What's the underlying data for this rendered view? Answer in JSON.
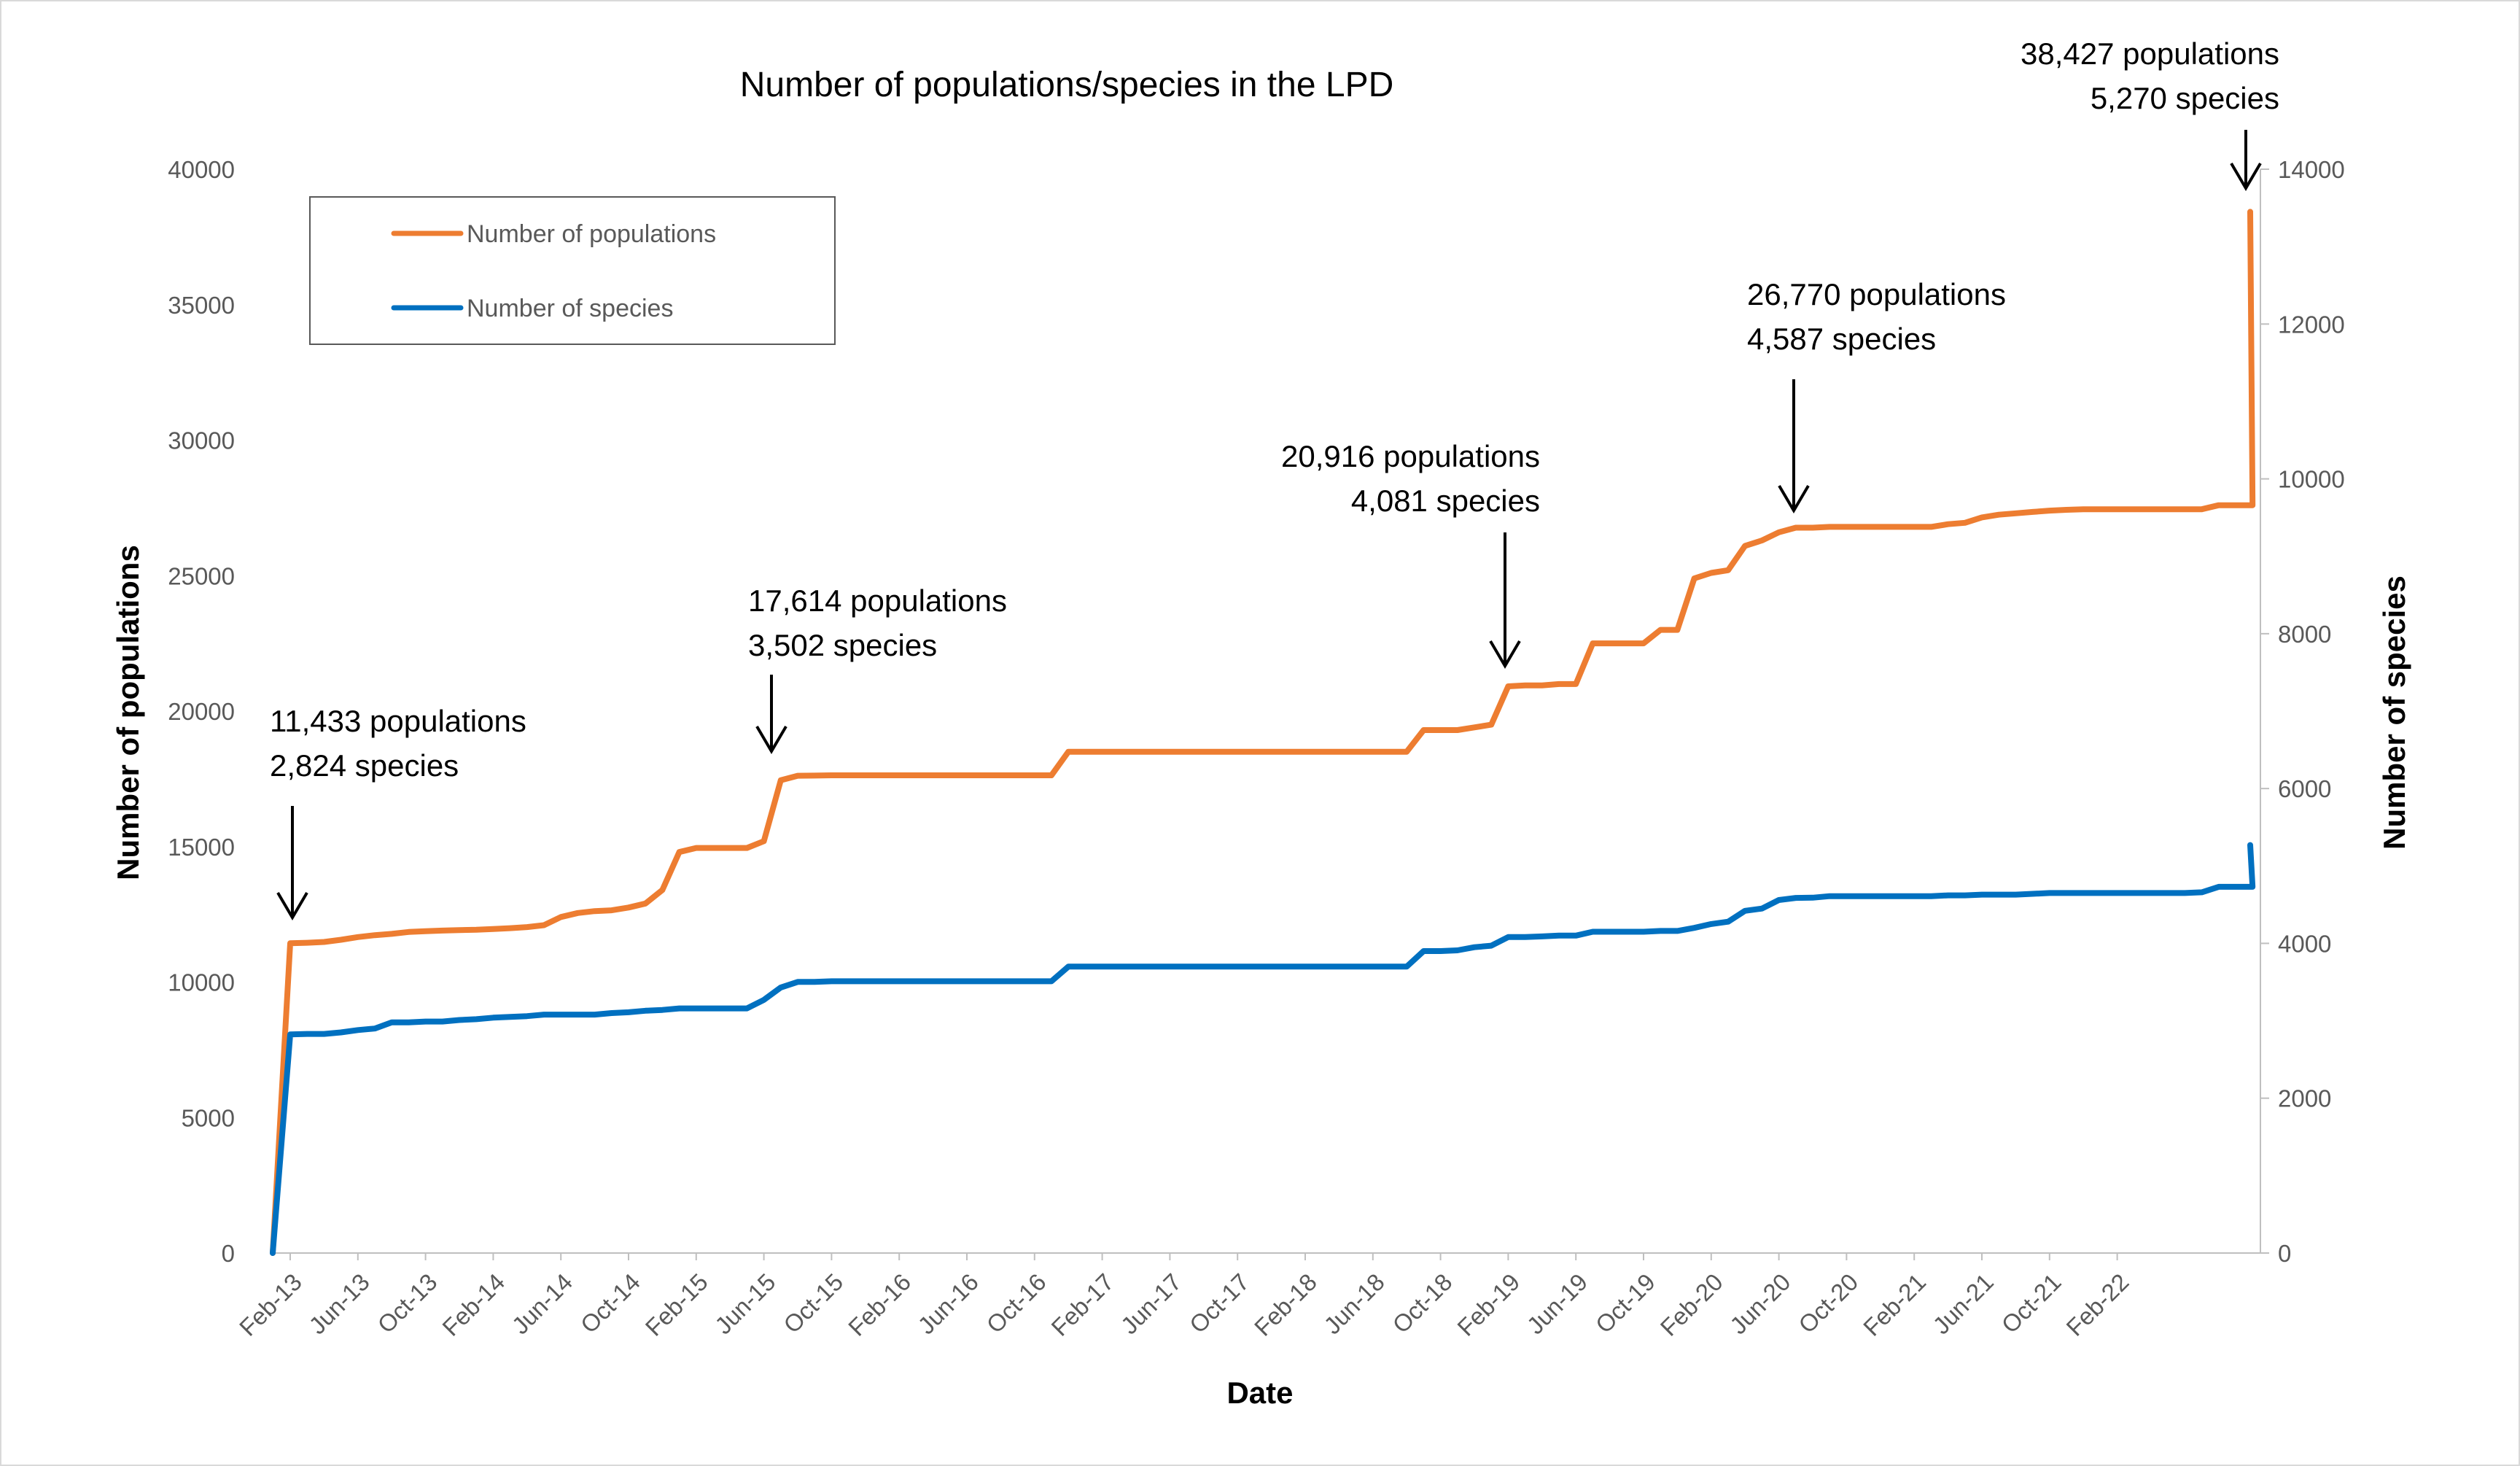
{
  "chart_data": {
    "type": "line",
    "title": "Number of populations/species in the LPD",
    "xlabel": "Date",
    "ylabel_left": "Number of populations",
    "ylabel_right": "Number of species",
    "ylim_left": [
      0,
      40000
    ],
    "ylim_right": [
      0,
      14000
    ],
    "yticks_left": [
      "0",
      "5000",
      "10000",
      "15000",
      "20000",
      "25000",
      "30000",
      "35000",
      "40000"
    ],
    "yticks_right": [
      "0",
      "2000",
      "4000",
      "6000",
      "8000",
      "10000",
      "12000",
      "14000"
    ],
    "x_categories": [
      "Feb-13",
      "Jun-13",
      "Oct-13",
      "Feb-14",
      "Jun-14",
      "Oct-14",
      "Feb-15",
      "Jun-15",
      "Oct-15",
      "Feb-16",
      "Jun-16",
      "Oct-16",
      "Feb-17",
      "Jun-17",
      "Oct-17",
      "Feb-18",
      "Jun-18",
      "Oct-18",
      "Feb-19",
      "Jun-19",
      "Oct-19",
      "Feb-20",
      "Jun-20",
      "Oct-20",
      "Feb-21",
      "Jun-21",
      "Oct-21",
      "Feb-22"
    ],
    "x_range_months": [
      -1,
      115
    ],
    "legend": {
      "placement": "top-left",
      "entries": [
        "Number of populations",
        "Number of species"
      ]
    },
    "series": [
      {
        "name": "Number of populations",
        "axis": "left",
        "color": "#ED7D31",
        "points": [
          [
            -1,
            0
          ],
          [
            0,
            11433
          ],
          [
            1,
            11450
          ],
          [
            2,
            11480
          ],
          [
            3,
            11560
          ],
          [
            4,
            11660
          ],
          [
            5,
            11730
          ],
          [
            6,
            11780
          ],
          [
            7,
            11850
          ],
          [
            8,
            11880
          ],
          [
            9,
            11900
          ],
          [
            10,
            11920
          ],
          [
            11,
            11930
          ],
          [
            12,
            11960
          ],
          [
            13,
            11990
          ],
          [
            14,
            12030
          ],
          [
            15,
            12100
          ],
          [
            16,
            12400
          ],
          [
            17,
            12550
          ],
          [
            18,
            12620
          ],
          [
            19,
            12650
          ],
          [
            20,
            12750
          ],
          [
            21,
            12900
          ],
          [
            22,
            13400
          ],
          [
            23,
            14800
          ],
          [
            24,
            14950
          ],
          [
            25,
            14950
          ],
          [
            26,
            14950
          ],
          [
            27,
            14950
          ],
          [
            28,
            15200
          ],
          [
            29,
            17450
          ],
          [
            30,
            17614
          ],
          [
            31,
            17620
          ],
          [
            32,
            17630
          ],
          [
            33,
            17630
          ],
          [
            34,
            17630
          ],
          [
            35,
            17630
          ],
          [
            36,
            17630
          ],
          [
            37,
            17630
          ],
          [
            38,
            17630
          ],
          [
            39,
            17630
          ],
          [
            40,
            17630
          ],
          [
            41,
            17630
          ],
          [
            42,
            17630
          ],
          [
            43,
            17630
          ],
          [
            44,
            17630
          ],
          [
            45,
            17630
          ],
          [
            46,
            18500
          ],
          [
            47,
            18500
          ],
          [
            48,
            18500
          ],
          [
            49,
            18500
          ],
          [
            50,
            18500
          ],
          [
            51,
            18500
          ],
          [
            52,
            18500
          ],
          [
            53,
            18500
          ],
          [
            54,
            18500
          ],
          [
            55,
            18500
          ],
          [
            56,
            18500
          ],
          [
            57,
            18500
          ],
          [
            58,
            18500
          ],
          [
            59,
            18500
          ],
          [
            60,
            18500
          ],
          [
            61,
            18500
          ],
          [
            62,
            18500
          ],
          [
            63,
            18500
          ],
          [
            64,
            18500
          ],
          [
            65,
            18500
          ],
          [
            66,
            18500
          ],
          [
            67,
            19300
          ],
          [
            68,
            19300
          ],
          [
            69,
            19300
          ],
          [
            70,
            19400
          ],
          [
            71,
            19500
          ],
          [
            72,
            20916
          ],
          [
            73,
            20950
          ],
          [
            74,
            20950
          ],
          [
            75,
            21000
          ],
          [
            76,
            21000
          ],
          [
            77,
            22500
          ],
          [
            78,
            22500
          ],
          [
            79,
            22500
          ],
          [
            80,
            22500
          ],
          [
            81,
            23000
          ],
          [
            82,
            23000
          ],
          [
            83,
            24900
          ],
          [
            84,
            25100
          ],
          [
            85,
            25200
          ],
          [
            86,
            26100
          ],
          [
            87,
            26300
          ],
          [
            88,
            26600
          ],
          [
            89,
            26770
          ],
          [
            90,
            26770
          ],
          [
            91,
            26800
          ],
          [
            92,
            26800
          ],
          [
            93,
            26800
          ],
          [
            94,
            26800
          ],
          [
            95,
            26800
          ],
          [
            96,
            26800
          ],
          [
            97,
            26800
          ],
          [
            98,
            26900
          ],
          [
            99,
            26950
          ],
          [
            100,
            27150
          ],
          [
            101,
            27250
          ],
          [
            102,
            27300
          ],
          [
            103,
            27350
          ],
          [
            104,
            27400
          ],
          [
            105,
            27430
          ],
          [
            106,
            27450
          ],
          [
            107,
            27450
          ],
          [
            108,
            27450
          ],
          [
            109,
            27450
          ],
          [
            110,
            27450
          ],
          [
            111,
            27450
          ],
          [
            112,
            27450
          ],
          [
            113,
            27450
          ],
          [
            114,
            27600
          ],
          [
            115,
            27600
          ],
          [
            116,
            27600
          ],
          [
            117,
            38427
          ]
        ]
      },
      {
        "name": "Number of species",
        "axis": "right",
        "color": "#0070C0",
        "points": [
          [
            -1,
            0
          ],
          [
            0,
            2824
          ],
          [
            1,
            2830
          ],
          [
            2,
            2830
          ],
          [
            3,
            2850
          ],
          [
            4,
            2880
          ],
          [
            5,
            2900
          ],
          [
            6,
            2980
          ],
          [
            7,
            2980
          ],
          [
            8,
            2990
          ],
          [
            9,
            2990
          ],
          [
            10,
            3010
          ],
          [
            11,
            3020
          ],
          [
            12,
            3040
          ],
          [
            13,
            3050
          ],
          [
            14,
            3060
          ],
          [
            15,
            3080
          ],
          [
            16,
            3080
          ],
          [
            17,
            3080
          ],
          [
            18,
            3080
          ],
          [
            19,
            3100
          ],
          [
            20,
            3110
          ],
          [
            21,
            3130
          ],
          [
            22,
            3140
          ],
          [
            23,
            3160
          ],
          [
            24,
            3160
          ],
          [
            25,
            3160
          ],
          [
            26,
            3160
          ],
          [
            27,
            3160
          ],
          [
            28,
            3270
          ],
          [
            29,
            3430
          ],
          [
            30,
            3502
          ],
          [
            31,
            3502
          ],
          [
            32,
            3510
          ],
          [
            33,
            3510
          ],
          [
            34,
            3510
          ],
          [
            35,
            3510
          ],
          [
            36,
            3510
          ],
          [
            37,
            3510
          ],
          [
            38,
            3510
          ],
          [
            39,
            3510
          ],
          [
            40,
            3510
          ],
          [
            41,
            3510
          ],
          [
            42,
            3510
          ],
          [
            43,
            3510
          ],
          [
            44,
            3510
          ],
          [
            45,
            3510
          ],
          [
            46,
            3700
          ],
          [
            47,
            3700
          ],
          [
            48,
            3700
          ],
          [
            49,
            3700
          ],
          [
            50,
            3700
          ],
          [
            51,
            3700
          ],
          [
            52,
            3700
          ],
          [
            53,
            3700
          ],
          [
            54,
            3700
          ],
          [
            55,
            3700
          ],
          [
            56,
            3700
          ],
          [
            57,
            3700
          ],
          [
            58,
            3700
          ],
          [
            59,
            3700
          ],
          [
            60,
            3700
          ],
          [
            61,
            3700
          ],
          [
            62,
            3700
          ],
          [
            63,
            3700
          ],
          [
            64,
            3700
          ],
          [
            65,
            3700
          ],
          [
            66,
            3700
          ],
          [
            67,
            3900
          ],
          [
            68,
            3900
          ],
          [
            69,
            3910
          ],
          [
            70,
            3950
          ],
          [
            71,
            3970
          ],
          [
            72,
            4081
          ],
          [
            73,
            4081
          ],
          [
            74,
            4090
          ],
          [
            75,
            4100
          ],
          [
            76,
            4100
          ],
          [
            77,
            4150
          ],
          [
            78,
            4150
          ],
          [
            79,
            4150
          ],
          [
            80,
            4150
          ],
          [
            81,
            4160
          ],
          [
            82,
            4160
          ],
          [
            83,
            4200
          ],
          [
            84,
            4250
          ],
          [
            85,
            4280
          ],
          [
            86,
            4420
          ],
          [
            87,
            4450
          ],
          [
            88,
            4560
          ],
          [
            89,
            4587
          ],
          [
            90,
            4590
          ],
          [
            91,
            4610
          ],
          [
            92,
            4610
          ],
          [
            93,
            4610
          ],
          [
            94,
            4610
          ],
          [
            95,
            4610
          ],
          [
            96,
            4610
          ],
          [
            97,
            4610
          ],
          [
            98,
            4620
          ],
          [
            99,
            4620
          ],
          [
            100,
            4630
          ],
          [
            101,
            4630
          ],
          [
            102,
            4630
          ],
          [
            103,
            4640
          ],
          [
            104,
            4650
          ],
          [
            105,
            4650
          ],
          [
            106,
            4650
          ],
          [
            107,
            4650
          ],
          [
            108,
            4650
          ],
          [
            109,
            4650
          ],
          [
            110,
            4650
          ],
          [
            111,
            4650
          ],
          [
            112,
            4650
          ],
          [
            113,
            4660
          ],
          [
            114,
            4730
          ],
          [
            115,
            4730
          ],
          [
            116,
            4730
          ],
          [
            117,
            5270
          ]
        ]
      }
    ],
    "annotations": [
      {
        "lines": [
          "11,433 populations",
          "2,824 species"
        ],
        "x_month": 0,
        "value": 11433,
        "align": "start"
      },
      {
        "lines": [
          "17,614 populations",
          "3,502 species"
        ],
        "x_month": 30,
        "value": 17614,
        "align": "start"
      },
      {
        "lines": [
          "20,916 populations",
          "4,081 species"
        ],
        "x_month": 72,
        "value": 20916,
        "align": "end"
      },
      {
        "lines": [
          "26,770 populations",
          "4,587 species"
        ],
        "x_month": 89,
        "value": 26770,
        "align": "start"
      },
      {
        "lines": [
          "38,427 populations",
          "5,270 species"
        ],
        "x_month": 117,
        "value": 38427,
        "align": "end"
      }
    ]
  }
}
